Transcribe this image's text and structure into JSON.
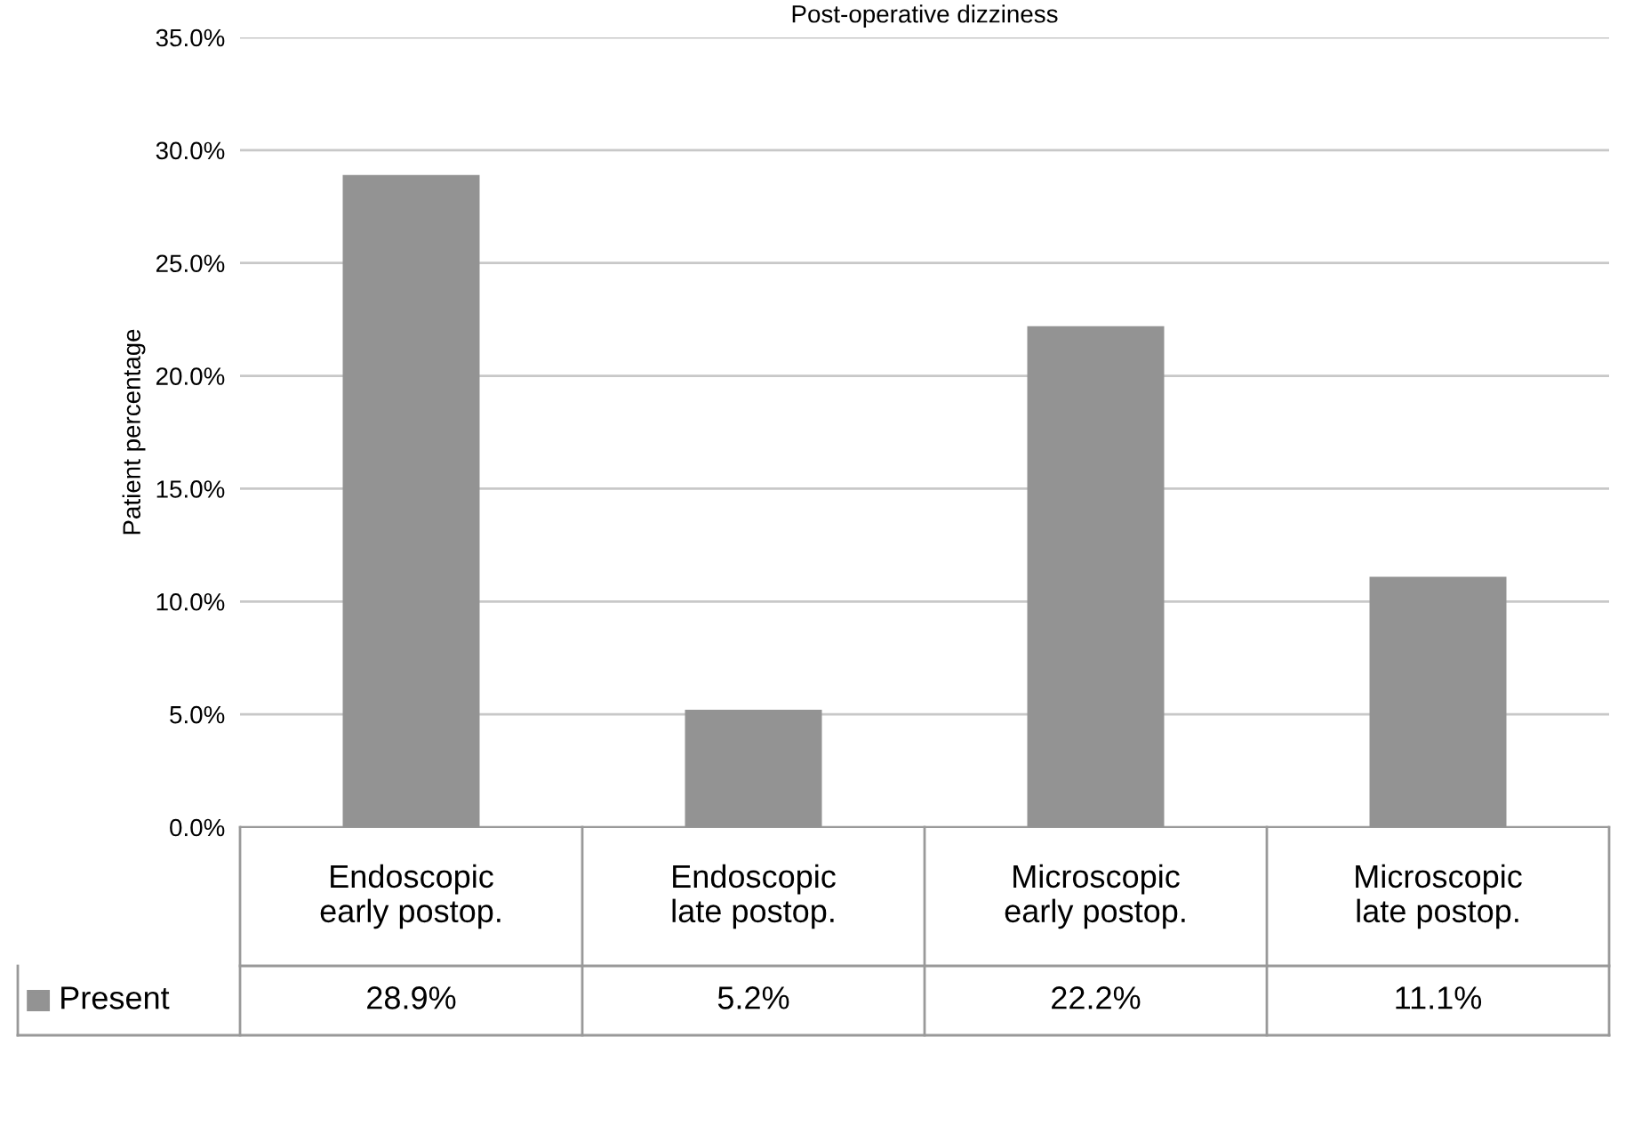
{
  "chart_data": {
    "type": "bar",
    "title": "Post-operative dizziness",
    "ylabel": "Patient percentage",
    "categories": [
      "Endoscopic\nearly postop.",
      "Endoscopic\nlate postop.",
      "Microscopic\nearly postop.",
      "Microscopic\nlate postop."
    ],
    "series": [
      {
        "name": "Present",
        "color": "#939393",
        "values": [
          28.9,
          5.2,
          22.2,
          11.1
        ],
        "value_labels": [
          "28.9%",
          "5.2%",
          "22.2%",
          "11.1%"
        ]
      }
    ],
    "ylim": [
      0,
      35
    ],
    "yticks": [
      {
        "value": 0,
        "label": "0.0%"
      },
      {
        "value": 5,
        "label": "5.0%"
      },
      {
        "value": 10,
        "label": "10.0%"
      },
      {
        "value": 15,
        "label": "15.0%"
      },
      {
        "value": 20,
        "label": "20.0%"
      },
      {
        "value": 25,
        "label": "25.0%"
      },
      {
        "value": 30,
        "label": "30.0%"
      },
      {
        "value": 35,
        "label": "35.0%"
      }
    ],
    "grid": "y",
    "legend": "bottom left",
    "data_labels": true
  }
}
